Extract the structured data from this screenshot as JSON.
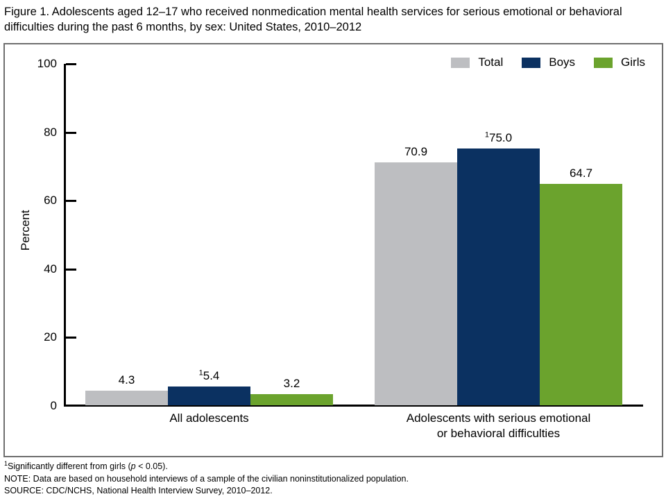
{
  "figure": {
    "title": "Figure 1. Adolescents aged 12–17 who received nonmedication mental health services for serious emotional or behavioral difficulties during the past 6 months, by sex: United States, 2010–2012"
  },
  "colors": {
    "total_gray": "#BDBEC1",
    "boys_navy": "#0B3161",
    "girls_green": "#6BA32D",
    "axis_black": "#000000",
    "frame_gray": "#6e6e6e"
  },
  "chart_data": {
    "type": "bar",
    "title": "Figure 1. Adolescents aged 12–17 who received nonmedication mental health services for serious emotional or behavioral difficulties during the past 6 months, by sex: United States, 2010–2012",
    "xlabel": "",
    "ylabel": "Percent",
    "ylim": [
      0,
      100
    ],
    "yticks": [
      0,
      20,
      40,
      60,
      80,
      100
    ],
    "grid": false,
    "legend_position": "top-right",
    "categories": [
      "All adolescents",
      "Adolescents with serious emotional\nor behavioral difficulties"
    ],
    "series": [
      {
        "name": "Total",
        "color": "#BDBEC1",
        "values": [
          4.3,
          70.9
        ],
        "labels": [
          {
            "sup": "",
            "text": "4.3"
          },
          {
            "sup": "",
            "text": "70.9"
          }
        ]
      },
      {
        "name": "Boys",
        "color": "#0B3161",
        "values": [
          5.4,
          75.0
        ],
        "labels": [
          {
            "sup": "1",
            "text": "5.4"
          },
          {
            "sup": "1",
            "text": "75.0"
          }
        ]
      },
      {
        "name": "Girls",
        "color": "#6BA32D",
        "values": [
          3.2,
          64.7
        ],
        "labels": [
          {
            "sup": "",
            "text": "3.2"
          },
          {
            "sup": "",
            "text": "64.7"
          }
        ]
      }
    ]
  },
  "footnotes": {
    "fn1_sup": "1",
    "fn1_pre": "Significantly different from girls (",
    "fn1_p": "p",
    "fn1_post": " < 0.05).",
    "note": "NOTE: Data are based on household interviews of a sample of the civilian noninstitutionalized population.",
    "source": "SOURCE: CDC/NCHS, National Health Interview Survey, 2010–2012."
  }
}
